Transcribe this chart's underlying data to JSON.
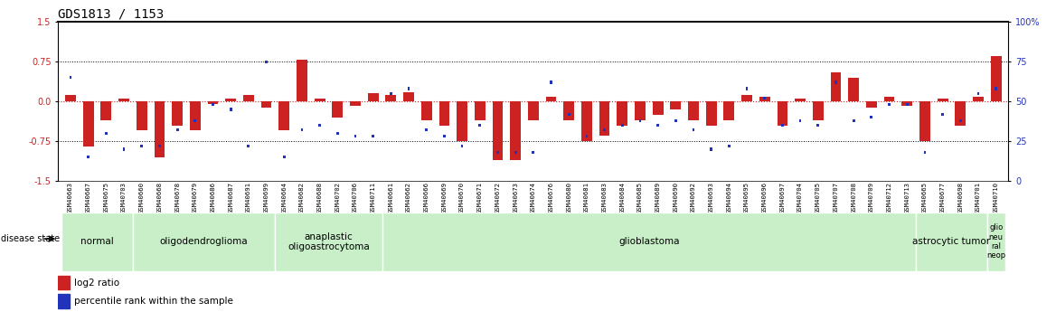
{
  "title": "GDS1813 / 1153",
  "samples": [
    "GSM40663",
    "GSM40667",
    "GSM40675",
    "GSM40703",
    "GSM40660",
    "GSM40668",
    "GSM40678",
    "GSM40679",
    "GSM40686",
    "GSM40687",
    "GSM40691",
    "GSM40699",
    "GSM40664",
    "GSM40682",
    "GSM40688",
    "GSM40702",
    "GSM40706",
    "GSM40711",
    "GSM40661",
    "GSM40662",
    "GSM40666",
    "GSM40669",
    "GSM40670",
    "GSM40671",
    "GSM40672",
    "GSM40673",
    "GSM40674",
    "GSM40676",
    "GSM40680",
    "GSM40681",
    "GSM40683",
    "GSM40684",
    "GSM40685",
    "GSM40689",
    "GSM40690",
    "GSM40692",
    "GSM40693",
    "GSM40694",
    "GSM40695",
    "GSM40696",
    "GSM40697",
    "GSM40704",
    "GSM40705",
    "GSM40707",
    "GSM40708",
    "GSM40709",
    "GSM40712",
    "GSM40713",
    "GSM40665",
    "GSM40677",
    "GSM40698",
    "GSM40701",
    "GSM40710"
  ],
  "log2_ratio": [
    0.12,
    -0.85,
    -0.35,
    0.05,
    -0.55,
    -1.05,
    -0.45,
    -0.55,
    -0.05,
    0.05,
    0.12,
    -0.12,
    -0.55,
    0.78,
    0.05,
    -0.3,
    -0.08,
    0.15,
    0.12,
    0.18,
    -0.35,
    -0.45,
    -0.75,
    -0.35,
    -1.1,
    -1.1,
    -0.35,
    0.08,
    -0.35,
    -0.75,
    -0.65,
    -0.45,
    -0.35,
    -0.25,
    -0.15,
    -0.35,
    -0.45,
    -0.35,
    0.12,
    0.08,
    -0.45,
    0.05,
    -0.35,
    0.55,
    0.45,
    -0.12,
    0.08,
    -0.08,
    -0.75,
    0.05,
    -0.45,
    0.08,
    0.85
  ],
  "percentile": [
    65,
    15,
    30,
    20,
    22,
    22,
    32,
    38,
    48,
    45,
    22,
    75,
    15,
    32,
    35,
    30,
    28,
    28,
    55,
    58,
    32,
    28,
    22,
    35,
    18,
    18,
    18,
    62,
    42,
    28,
    32,
    35,
    38,
    35,
    38,
    32,
    20,
    22,
    58,
    52,
    35,
    38,
    35,
    62,
    38,
    40,
    48,
    48,
    18,
    42,
    38,
    55,
    58
  ],
  "disease_groups": [
    {
      "label": "normal",
      "start": 0,
      "end": 3
    },
    {
      "label": "oligodendroglioma",
      "start": 4,
      "end": 11
    },
    {
      "label": "anaplastic\noligoastrocytoma",
      "start": 12,
      "end": 17
    },
    {
      "label": "glioblastoma",
      "start": 18,
      "end": 47
    },
    {
      "label": "astrocytic tumor",
      "start": 48,
      "end": 51
    },
    {
      "label": "glio\nneu\nral\nneop",
      "start": 52,
      "end": 52
    }
  ],
  "ylim": [
    -1.5,
    1.5
  ],
  "yticks": [
    -1.5,
    -0.75,
    0.0,
    0.75,
    1.5
  ],
  "right_yticks": [
    0,
    25,
    50,
    75,
    100
  ],
  "bar_color_red": "#cc2222",
  "bar_color_blue": "#2233bb",
  "group_bg_color": "#c8efc8",
  "title_fontsize": 10,
  "tick_fontsize": 7,
  "group_label_fontsize": 7.5,
  "legend_fontsize": 7.5
}
